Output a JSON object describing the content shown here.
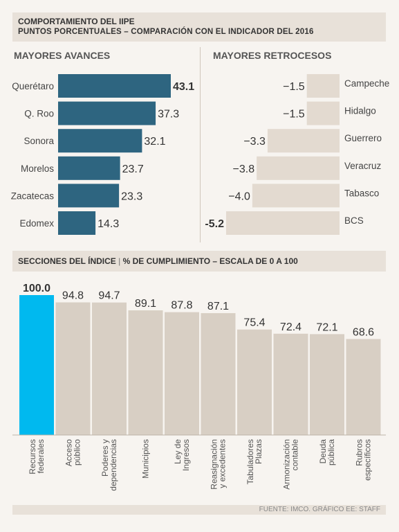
{
  "header": {
    "title": "COMPORTAMIENTO DEL IIPE",
    "subtitle": "PUNTOS PORCENTUALES – COMPARACIÓN CON EL INDICADOR DEL 2016"
  },
  "colors": {
    "advance_bar": "#2e6580",
    "retreat_bar": "#e3dad0",
    "section_bar": "#d8cfc4",
    "highlight_bar": "#00b9ef",
    "panel_bg": "#e8e1d9"
  },
  "section2": {
    "title": "SECCIONES DEL ÍNDICE",
    "separator": "|",
    "subtitle": "% DE CUMPLIMIENTO – ESCALA DE 0 A 100"
  },
  "footer": {
    "source": "FUENTE: IMCO. GRÁFICO EE: STAFF"
  },
  "chart_data": [
    {
      "type": "bar",
      "orientation": "horizontal",
      "title": "MAYORES AVANCES",
      "categories": [
        "Querétaro",
        "Q. Roo",
        "Sonora",
        "Morelos",
        "Zacatecas",
        "Edomex"
      ],
      "values": [
        43.1,
        37.3,
        32.1,
        23.7,
        23.3,
        14.3
      ],
      "value_labels": [
        "43.1",
        "37.3",
        "32.1",
        "23.7",
        "23.3",
        "14.3"
      ],
      "xlim": [
        0,
        43.1
      ]
    },
    {
      "type": "bar",
      "orientation": "horizontal",
      "title": "MAYORES RETROCESOS",
      "categories": [
        "Campeche",
        "Hidalgo",
        "Guerrero",
        "Veracruz",
        "Tabasco",
        "BCS"
      ],
      "values": [
        -1.5,
        -1.5,
        -3.3,
        -3.8,
        -4.0,
        -5.2
      ],
      "value_labels": [
        "−1.5",
        "−1.5",
        "−3.3",
        "−3.8",
        "−4.0",
        "-5.2"
      ],
      "xlim": [
        -5.2,
        0
      ]
    },
    {
      "type": "bar",
      "orientation": "vertical",
      "categories": [
        [
          "Recursos",
          "federales"
        ],
        [
          "Acceso",
          "público"
        ],
        [
          "Poderes y",
          "dependencias"
        ],
        [
          "Municipios"
        ],
        [
          "Ley de",
          "Ingresos"
        ],
        [
          "Reasignación",
          "y excedentes"
        ],
        [
          "Tabuladores",
          "Plazas"
        ],
        [
          "Armonización",
          "contable"
        ],
        [
          "Deuda",
          "pública"
        ],
        [
          "Rubros",
          "específicos"
        ]
      ],
      "values": [
        100.0,
        94.8,
        94.7,
        89.1,
        87.8,
        87.1,
        75.4,
        72.4,
        72.1,
        68.6
      ],
      "value_labels": [
        "100.0",
        "94.8",
        "94.7",
        "89.1",
        "87.8",
        "87.1",
        "75.4",
        "72.4",
        "72.1",
        "68.6"
      ],
      "highlight_index": 0,
      "ylim": [
        0,
        100
      ]
    }
  ]
}
